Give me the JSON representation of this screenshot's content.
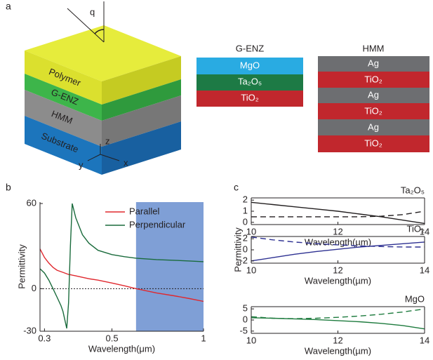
{
  "figure": {
    "panel_labels": [
      "a",
      "b",
      "c"
    ],
    "block": {
      "layers": [
        "Polymer",
        "G-ENZ",
        "HMM",
        "Substrate"
      ],
      "axes": [
        "z",
        "y",
        "x"
      ],
      "angle": "q"
    },
    "genz": {
      "title": "G-ENZ",
      "layers": [
        "MgO",
        "Ta₂O₅",
        "TiO₂"
      ]
    },
    "hmm": {
      "title": "HMM",
      "layers": [
        "Ag",
        "TiO₂",
        "Ag",
        "TiO₂",
        "Ag",
        "TiO₂"
      ]
    }
  },
  "chart_data": [
    {
      "type": "line",
      "xlabel": "Wavelength(μm)",
      "ylabel": "Permittivity",
      "xscale": "log",
      "x": [
        0.29,
        0.3,
        0.31,
        0.32,
        0.33,
        0.34,
        0.345,
        0.35,
        0.355,
        0.36,
        0.365,
        0.37,
        0.38,
        0.4,
        0.42,
        0.45,
        0.5,
        0.55,
        0.6,
        0.7,
        0.8,
        0.9,
        1.0
      ],
      "series": [
        {
          "name": "Parallel",
          "color": "#e0282e",
          "style": "solid",
          "values": [
            28,
            22,
            18,
            15,
            13,
            12,
            11.5,
            11,
            10.5,
            10,
            9.8,
            9.5,
            9,
            8,
            7,
            6,
            4,
            2,
            0,
            -3,
            -5,
            -7,
            -9
          ]
        },
        {
          "name": "Perpendicular",
          "color": "#1a6b3c",
          "style": "solid",
          "values": [
            14,
            11,
            6,
            0,
            -6,
            -12,
            -16,
            -22,
            -28,
            -10,
            30,
            60,
            50,
            38,
            32,
            27,
            24,
            22.5,
            21.5,
            20.5,
            20,
            19.5,
            19
          ]
        }
      ],
      "xlim": [
        0.29,
        1
      ],
      "ylim": [
        -30,
        61
      ],
      "xticks": [
        0.3,
        0.5,
        1
      ],
      "yticks": [
        -30,
        0,
        60
      ],
      "highlight": [
        0.6,
        1
      ],
      "highlight_color": "#7f9fd6",
      "reference_line": 0,
      "legend": "top-right"
    },
    {
      "type": "line",
      "title": "Ta₂O₅",
      "xlabel": "Wavelength(µm)",
      "x": [
        10,
        10.5,
        11,
        11.5,
        12,
        12.5,
        13,
        13.5,
        14
      ],
      "series": [
        {
          "color": "#231f20",
          "style": "solid",
          "values": [
            1.8,
            1.6,
            1.4,
            1.2,
            1.0,
            0.75,
            0.5,
            0.2,
            -0.1
          ]
        },
        {
          "color": "#231f20",
          "style": "dashed",
          "values": [
            0.5,
            0.5,
            0.5,
            0.5,
            0.5,
            0.5,
            0.55,
            0.7,
            1.0
          ]
        }
      ],
      "xlim": [
        10,
        14
      ],
      "ylim": [
        -0.2,
        2.2
      ],
      "xticks": [
        10,
        12,
        14
      ],
      "yticks": [
        0,
        1,
        2
      ]
    },
    {
      "type": "line",
      "title": "TiO₂",
      "xlabel": "Wavelength(µm)",
      "ylabel": "Permittivity",
      "x": [
        10,
        10.5,
        11,
        11.5,
        12,
        12.5,
        13,
        13.5,
        14
      ],
      "series": [
        {
          "color": "#2e3192",
          "style": "solid",
          "values": [
            -2,
            -1.4,
            -0.8,
            -0.3,
            0.1,
            0.5,
            0.8,
            1.1,
            1.4
          ]
        },
        {
          "color": "#2e3192",
          "style": "dashed",
          "values": [
            2.3,
            1.8,
            1.4,
            1.1,
            0.9,
            0.7,
            0.6,
            0.5,
            0.5
          ]
        }
      ],
      "xlim": [
        10,
        14
      ],
      "ylim": [
        -2.4,
        2.4
      ],
      "xticks": [
        10,
        12,
        14
      ],
      "yticks": [
        -2,
        0,
        2
      ]
    },
    {
      "type": "line",
      "title": "MgO",
      "xlabel": "Wavelength(µm)",
      "x": [
        10,
        10.5,
        11,
        11.5,
        12,
        12.5,
        13,
        13.5,
        14
      ],
      "series": [
        {
          "color": "#1e7b3e",
          "style": "solid",
          "values": [
            1,
            0.8,
            0.5,
            0.2,
            -0.3,
            -0.8,
            -1.5,
            -2.5,
            -4
          ]
        },
        {
          "color": "#1e7b3e",
          "style": "dashed",
          "values": [
            1.5,
            0.8,
            0.6,
            0.8,
            1.2,
            1.8,
            2.6,
            3.6,
            5
          ]
        }
      ],
      "xlim": [
        10,
        14
      ],
      "ylim": [
        -6,
        6
      ],
      "xticks": [
        10,
        12,
        14
      ],
      "yticks": [
        -5,
        0,
        5
      ]
    }
  ]
}
